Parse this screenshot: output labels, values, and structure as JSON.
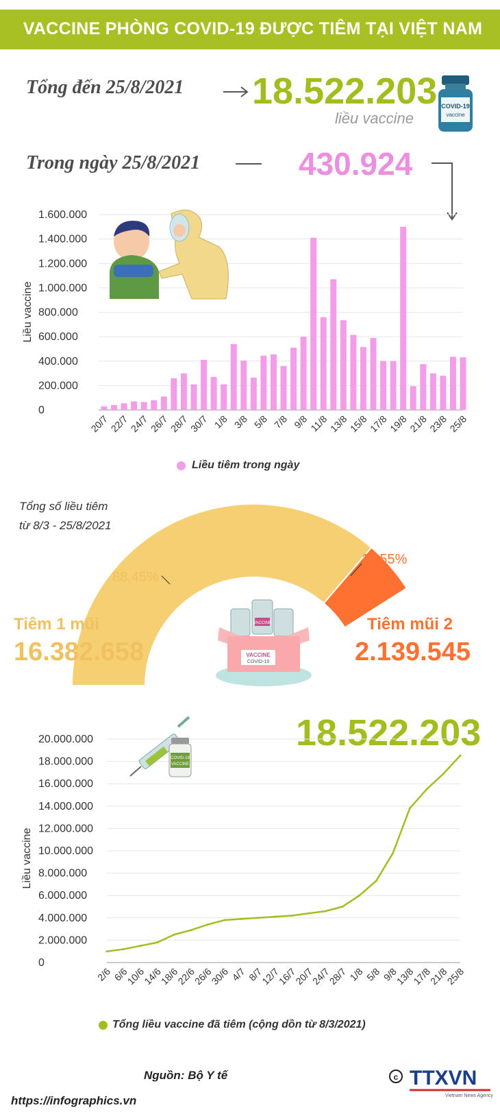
{
  "header": {
    "title": "VACCINE PHÒNG COVID-19 ĐƯỢC TIÊM TẠI VIỆT NAM"
  },
  "summary": {
    "total_label": "Tổng đến 25/8/2021",
    "total_value": "18.522.203",
    "total_unit": "liều vaccine",
    "day_label": "Trong ngày 25/8/2021",
    "day_value": "430.924",
    "vial_text_top": "COVID-19",
    "vial_text_bottom": "vaccine"
  },
  "colors": {
    "green": "#a3bd1f",
    "pink": "#f39de8",
    "yellow": "#f5cf72",
    "orange": "#ff7130"
  },
  "chart_data": [
    {
      "type": "bar",
      "ylabel": "Liều vaccine",
      "ylim": [
        0,
        1600000
      ],
      "yticks": [
        0,
        200000,
        400000,
        600000,
        800000,
        1000000,
        1200000,
        1400000,
        1600000
      ],
      "ytick_labels": [
        "0",
        "200.000",
        "400.000",
        "600.000",
        "800.000",
        "1.000.000",
        "1.200.000",
        "1.400.000",
        "1.600.000"
      ],
      "xtick_labels": [
        "20/7",
        "22/7",
        "24/7",
        "26/7",
        "28/7",
        "30/7",
        "1/8",
        "3/8",
        "5/8",
        "7/8",
        "9/8",
        "11/8",
        "13/8",
        "15/8",
        "17/8",
        "19/8",
        "21/8",
        "23/8",
        "25/8"
      ],
      "categories": [
        "20/7",
        "21/7",
        "22/7",
        "23/7",
        "24/7",
        "25/7",
        "26/7",
        "27/7",
        "28/7",
        "29/7",
        "30/7",
        "31/7",
        "1/8",
        "2/8",
        "3/8",
        "4/8",
        "5/8",
        "6/8",
        "7/8",
        "8/8",
        "9/8",
        "10/8",
        "11/8",
        "12/8",
        "13/8",
        "14/8",
        "15/8",
        "16/8",
        "17/8",
        "18/8",
        "19/8",
        "20/8",
        "21/8",
        "22/8",
        "23/8",
        "24/8",
        "25/8"
      ],
      "series": [
        {
          "name": "Liều tiêm trong ngày",
          "values": [
            30000,
            40000,
            55000,
            70000,
            65000,
            80000,
            110000,
            260000,
            300000,
            210000,
            410000,
            270000,
            210000,
            540000,
            405000,
            265000,
            445000,
            455000,
            360000,
            510000,
            600000,
            1410000,
            760000,
            1070000,
            735000,
            615000,
            515000,
            590000,
            400000,
            400000,
            1500000,
            195000,
            375000,
            300000,
            280000,
            435000,
            431000
          ]
        }
      ],
      "legend": "bottom"
    },
    {
      "type": "pie",
      "title": "Tổng số liều tiêm",
      "subtitle": "từ 8/3 - 25/8/2021",
      "slices": [
        {
          "name": "Tiêm 1 mũi",
          "value": 16382658,
          "percent": 88.45,
          "label": "88,45%",
          "value_label": "16.382.658"
        },
        {
          "name": "Tiêm mũi 2",
          "value": 2139545,
          "percent": 11.55,
          "label": "11,55%",
          "value_label": "2.139.545"
        }
      ],
      "box_label": "VACCINE",
      "box_sublabel": "COVID-19",
      "vial_label": "VACCINE"
    },
    {
      "type": "line",
      "ylabel": "Liều vaccine",
      "ylim": [
        0,
        20000000
      ],
      "yticks": [
        0,
        2000000,
        4000000,
        6000000,
        8000000,
        10000000,
        12000000,
        14000000,
        16000000,
        18000000,
        20000000
      ],
      "ytick_labels": [
        "0",
        "2.000.000",
        "4.000.000",
        "6.000.000",
        "8.000.000",
        "10.000.000",
        "12.000.000",
        "14.000.000",
        "16.000.000",
        "18.000.000",
        "20.000.000"
      ],
      "xtick_labels": [
        "2/6",
        "6/6",
        "10/6",
        "14/6",
        "18/6",
        "22/6",
        "26/6",
        "30/6",
        "4/7",
        "8/7",
        "12/7",
        "16/7",
        "20/7",
        "24/7",
        "28/7",
        "1/8",
        "5/8",
        "9/8",
        "13/8",
        "17/8",
        "21/8",
        "25/8"
      ],
      "series": [
        {
          "name": "Tổng liều vaccine đã tiêm (cộng dồn từ 8/3/2021)",
          "x": [
            "2/6",
            "6/6",
            "10/6",
            "14/6",
            "18/6",
            "22/6",
            "26/6",
            "30/6",
            "4/7",
            "8/7",
            "12/7",
            "16/7",
            "20/7",
            "24/7",
            "28/7",
            "1/8",
            "5/8",
            "9/8",
            "13/8",
            "17/8",
            "21/8",
            "25/8"
          ],
          "values": [
            1000000,
            1200000,
            1500000,
            1800000,
            2500000,
            2900000,
            3400000,
            3800000,
            3900000,
            4000000,
            4100000,
            4200000,
            4400000,
            4600000,
            5000000,
            6000000,
            7300000,
            9800000,
            13800000,
            15500000,
            16900000,
            18522203
          ]
        }
      ],
      "final_value": "18.522.203",
      "vial_label": "COVID-19",
      "vial_sublabel": "VACCINE",
      "legend": "bottom"
    }
  ],
  "footer": {
    "source": "Nguồn: Bộ Y tế",
    "url": "https://infographics.vn",
    "logo": "TTXVN",
    "logo_sub": "Vietnam News Agency"
  }
}
